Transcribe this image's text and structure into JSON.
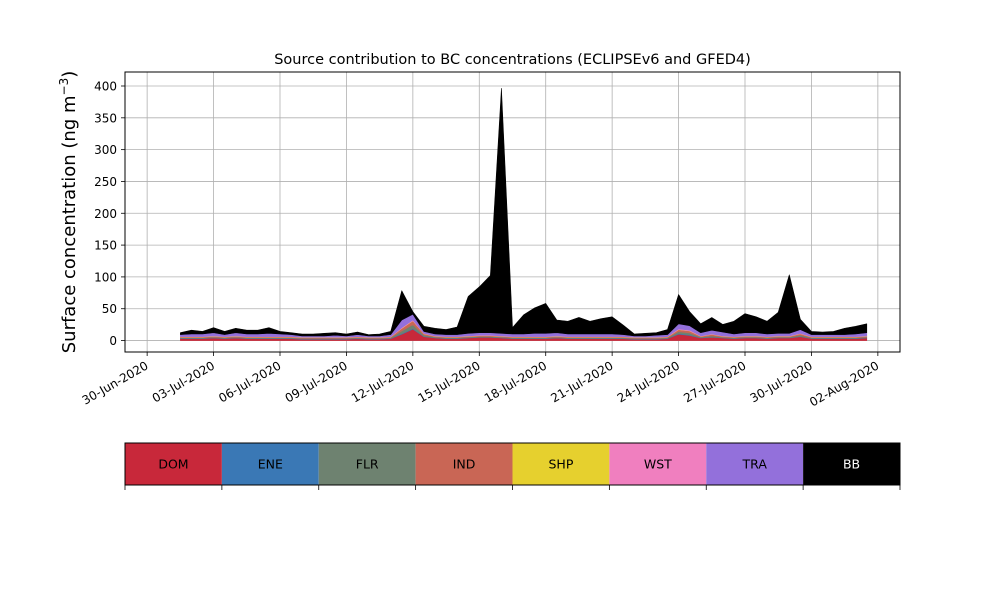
{
  "chart_data": {
    "type": "area",
    "title": "Source contribution to BC concentrations (ECLIPSEv6 and GFED4)",
    "ylabel": "Surface concentration (ng m",
    "ylabel_unit_superscript": "−3",
    "ylabel_close": ")",
    "xlabel": "",
    "stacked": true,
    "grid": true,
    "legend_placement": "bottom",
    "ylim": [
      -18,
      422
    ],
    "yticks": [
      0,
      50,
      100,
      150,
      200,
      250,
      300,
      350,
      400
    ],
    "xlim": [
      "2020-06-29T00:00",
      "2020-08-03T00:00"
    ],
    "xticks": [
      "2020-06-30",
      "2020-07-03",
      "2020-07-06",
      "2020-07-09",
      "2020-07-12",
      "2020-07-15",
      "2020-07-18",
      "2020-07-21",
      "2020-07-24",
      "2020-07-27",
      "2020-07-30",
      "2020-08-02"
    ],
    "xtick_labels": [
      "30-Jun-2020",
      "03-Jul-2020",
      "06-Jul-2020",
      "09-Jul-2020",
      "12-Jul-2020",
      "15-Jul-2020",
      "18-Jul-2020",
      "21-Jul-2020",
      "24-Jul-2020",
      "27-Jul-2020",
      "30-Jul-2020",
      "02-Aug-2020"
    ],
    "x": [
      "2020-07-01T12:00",
      "2020-07-02T00:00",
      "2020-07-02T12:00",
      "2020-07-03T00:00",
      "2020-07-03T12:00",
      "2020-07-04T00:00",
      "2020-07-04T12:00",
      "2020-07-05T00:00",
      "2020-07-05T12:00",
      "2020-07-06T00:00",
      "2020-07-06T12:00",
      "2020-07-07T00:00",
      "2020-07-07T12:00",
      "2020-07-08T00:00",
      "2020-07-08T12:00",
      "2020-07-09T00:00",
      "2020-07-09T12:00",
      "2020-07-10T00:00",
      "2020-07-10T12:00",
      "2020-07-11T00:00",
      "2020-07-11T12:00",
      "2020-07-12T00:00",
      "2020-07-12T12:00",
      "2020-07-13T00:00",
      "2020-07-13T12:00",
      "2020-07-14T00:00",
      "2020-07-14T12:00",
      "2020-07-15T00:00",
      "2020-07-15T12:00",
      "2020-07-16T00:00",
      "2020-07-16T12:00",
      "2020-07-17T00:00",
      "2020-07-17T12:00",
      "2020-07-18T00:00",
      "2020-07-18T12:00",
      "2020-07-19T00:00",
      "2020-07-19T12:00",
      "2020-07-20T00:00",
      "2020-07-20T12:00",
      "2020-07-21T00:00",
      "2020-07-21T12:00",
      "2020-07-22T00:00",
      "2020-07-22T12:00",
      "2020-07-23T00:00",
      "2020-07-23T12:00",
      "2020-07-24T00:00",
      "2020-07-24T12:00",
      "2020-07-25T00:00",
      "2020-07-25T12:00",
      "2020-07-26T00:00",
      "2020-07-26T12:00",
      "2020-07-27T00:00",
      "2020-07-27T12:00",
      "2020-07-28T00:00",
      "2020-07-28T12:00",
      "2020-07-29T00:00",
      "2020-07-29T12:00",
      "2020-07-30T00:00",
      "2020-07-30T12:00",
      "2020-07-31T00:00",
      "2020-07-31T12:00",
      "2020-08-01T00:00",
      "2020-08-01T12:00"
    ],
    "series": [
      {
        "name": "DOM",
        "color": "#c8283a",
        "values": [
          3,
          3,
          3,
          4,
          3,
          4,
          3,
          3,
          3,
          3,
          3,
          2,
          2,
          2,
          2,
          2,
          3,
          2,
          2,
          3,
          10,
          18,
          6,
          4,
          3,
          3,
          4,
          5,
          5,
          4,
          3,
          3,
          3,
          3,
          4,
          3,
          3,
          3,
          3,
          3,
          3,
          2,
          2,
          2,
          3,
          10,
          8,
          4,
          5,
          4,
          3,
          4,
          4,
          3,
          4,
          4,
          6,
          3,
          3,
          3,
          3,
          3,
          4
        ]
      },
      {
        "name": "ENE",
        "color": "#3a78b5",
        "values": [
          0.5,
          0.5,
          0.5,
          0.5,
          0.5,
          0.5,
          0.5,
          0.5,
          0.5,
          0.5,
          0.5,
          0.5,
          0.5,
          0.5,
          0.5,
          0.5,
          0.5,
          0.5,
          0.5,
          0.5,
          1,
          1,
          0.5,
          0.5,
          0.5,
          0.5,
          0.5,
          0.5,
          0.5,
          0.5,
          0.5,
          0.5,
          0.5,
          0.5,
          0.5,
          0.5,
          0.5,
          0.5,
          0.5,
          0.5,
          0.5,
          0.5,
          0.5,
          0.5,
          0.5,
          1,
          1,
          0.5,
          0.5,
          0.5,
          0.5,
          0.5,
          0.5,
          0.5,
          0.5,
          0.5,
          0.5,
          0.5,
          0.5,
          0.5,
          0.5,
          0.5,
          0.5
        ]
      },
      {
        "name": "FLR",
        "color": "#6e8270",
        "values": [
          1,
          1,
          1,
          1,
          1,
          1,
          1,
          1,
          1,
          1,
          1,
          1,
          1,
          1,
          1,
          1,
          1,
          1,
          1,
          1,
          4,
          6,
          2,
          1,
          1,
          1,
          1,
          1,
          1,
          1,
          1,
          1,
          1,
          1,
          1,
          1,
          1,
          1,
          1,
          1,
          1,
          1,
          1,
          1,
          1,
          3,
          3,
          1,
          2,
          1,
          1,
          1,
          1,
          1,
          1,
          1,
          2,
          1,
          1,
          1,
          1,
          1,
          1
        ]
      },
      {
        "name": "IND",
        "color": "#c96655",
        "values": [
          1,
          1,
          1,
          1,
          1,
          1,
          1,
          1,
          1,
          1,
          1,
          1,
          1,
          1,
          1,
          1,
          1,
          1,
          1,
          1,
          4,
          6,
          2,
          1,
          1,
          1,
          1,
          1,
          1,
          1,
          1,
          1,
          1,
          1,
          1,
          1,
          1,
          1,
          1,
          1,
          1,
          1,
          1,
          1,
          1,
          3,
          3,
          1,
          2,
          1,
          1,
          1,
          1,
          1,
          1,
          1,
          2,
          1,
          1,
          1,
          1,
          1,
          1
        ]
      },
      {
        "name": "SHP",
        "color": "#e6d02e",
        "values": [
          0.3,
          0.3,
          0.3,
          0.3,
          0.3,
          0.3,
          0.3,
          0.3,
          0.3,
          0.3,
          0.3,
          0.3,
          0.3,
          0.3,
          0.3,
          0.3,
          0.3,
          0.3,
          0.3,
          0.3,
          0.3,
          0.3,
          0.3,
          0.3,
          0.3,
          0.3,
          0.3,
          0.3,
          0.3,
          0.3,
          0.3,
          0.3,
          0.3,
          0.3,
          0.3,
          0.3,
          0.3,
          0.3,
          0.3,
          0.3,
          0.3,
          0.3,
          0.3,
          0.3,
          0.3,
          0.3,
          0.3,
          0.3,
          0.3,
          0.3,
          0.3,
          0.3,
          0.3,
          0.3,
          0.3,
          0.3,
          0.3,
          0.3,
          0.3,
          0.3,
          0.3,
          0.3,
          0.3
        ]
      },
      {
        "name": "WST",
        "color": "#f07fbf",
        "values": [
          0.5,
          0.5,
          0.5,
          0.5,
          0.5,
          0.5,
          0.5,
          0.5,
          0.5,
          0.5,
          0.5,
          0.5,
          0.5,
          0.5,
          0.5,
          0.5,
          0.5,
          0.5,
          0.5,
          0.5,
          1,
          1,
          0.5,
          0.5,
          0.5,
          0.5,
          0.5,
          0.5,
          0.5,
          0.5,
          0.5,
          0.5,
          0.5,
          0.5,
          0.5,
          0.5,
          0.5,
          0.5,
          0.5,
          0.5,
          0.5,
          0.5,
          0.5,
          0.5,
          0.5,
          1,
          1,
          0.5,
          0.5,
          0.5,
          0.5,
          0.5,
          0.5,
          0.5,
          0.5,
          0.5,
          0.5,
          0.5,
          0.5,
          0.5,
          0.5,
          0.5,
          0.5
        ]
      },
      {
        "name": "TRA",
        "color": "#9370db",
        "values": [
          3,
          4,
          4,
          5,
          3,
          5,
          4,
          4,
          5,
          4,
          3,
          2,
          2,
          2,
          3,
          2,
          3,
          2,
          2,
          3,
          12,
          9,
          3,
          3,
          3,
          3,
          4,
          4,
          4,
          4,
          4,
          4,
          5,
          5,
          5,
          4,
          4,
          4,
          4,
          4,
          3,
          2,
          2,
          3,
          3,
          8,
          7,
          5,
          6,
          6,
          4,
          5,
          5,
          4,
          4,
          4,
          6,
          3,
          3,
          3,
          3,
          4,
          5
        ]
      },
      {
        "name": "BB",
        "color": "#000000",
        "values": [
          3,
          6,
          4,
          8,
          5,
          7,
          6,
          6,
          9,
          4,
          3,
          3,
          3,
          4,
          4,
          3,
          4,
          2,
          3,
          5,
          46,
          4,
          8,
          9,
          8,
          12,
          58,
          72,
          90,
          385,
          10,
          30,
          40,
          47,
          20,
          20,
          26,
          20,
          24,
          27,
          15,
          3,
          4,
          4,
          8,
          46,
          22,
          14,
          20,
          12,
          20,
          30,
          25,
          20,
          33,
          92,
          16,
          5,
          4,
          5,
          10,
          12,
          14
        ]
      }
    ]
  },
  "legend": {
    "items": [
      {
        "name": "DOM",
        "color": "#c8283a",
        "text_color": "#000000"
      },
      {
        "name": "ENE",
        "color": "#3a78b5",
        "text_color": "#000000"
      },
      {
        "name": "FLR",
        "color": "#6e8270",
        "text_color": "#000000"
      },
      {
        "name": "IND",
        "color": "#c96655",
        "text_color": "#000000"
      },
      {
        "name": "SHP",
        "color": "#e6d02e",
        "text_color": "#000000"
      },
      {
        "name": "WST",
        "color": "#f07fbf",
        "text_color": "#000000"
      },
      {
        "name": "TRA",
        "color": "#9370db",
        "text_color": "#000000"
      },
      {
        "name": "BB",
        "color": "#000000",
        "text_color": "#ffffff"
      }
    ]
  }
}
